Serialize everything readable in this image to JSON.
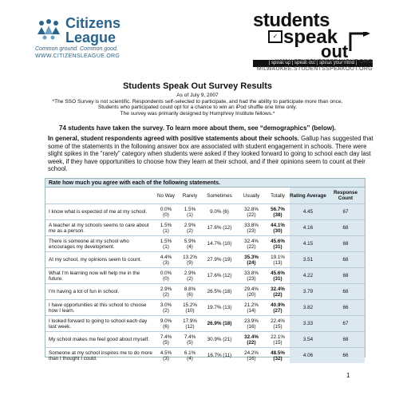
{
  "header": {
    "left_logo": {
      "name_line1": "Citizens",
      "name_line2": "League",
      "slogan": "Common ground. Common good.",
      "url": "WWW.CITIZENSLEAGUE.ORG"
    },
    "right_logo": {
      "word1": "students",
      "word2": "speak",
      "word3": "out",
      "tagline": "| speak up | speak out | speak your mind |",
      "url1": "WWW.STUDENTSSPEAKOUT.ORG",
      "url2": "MILWAUKEE.STUDENTSSPEAKOUT.ORG"
    }
  },
  "title": "Students Speak Out Survey Results",
  "subtitle_lines": [
    "As of July 9, 2007",
    "*The SSO Survey is not scientific. Respondents self-selected to participate, and had the ability to participate more than once.",
    "Students who participated could opt for a chance to win an iPod shuffle one time only.",
    "The survey was primarily designed by Humphrey Institute fellows.*"
  ],
  "demographics_note": "74 students have taken the survey. To learn more about them, see “demographics” (below).",
  "intro": {
    "bold": "In general, student respondents agreed with positive statements about their schools.",
    "text": " Gallup has suggested that some of the statements in the following answer box are associated with student engagement in schools. There were slight spikes in the “rarely” category when students were asked if they looked forward to going to school each day last week, if they have opportunities to choose how they learn at their school, and if their opinions seem to count at their school."
  },
  "table": {
    "heading": "Rate how much you agree with each of the following statements.",
    "columns": [
      "No Way",
      "Rarely",
      "Sometimes",
      "Usually",
      "Totally",
      "Rating Average",
      "Response Count"
    ],
    "rows": [
      {
        "statement": "I know what is expected of me at my school.",
        "noway": [
          "0.0%",
          "(0)"
        ],
        "rarely": [
          "1.5%",
          "(1)"
        ],
        "sometimes": "9.0% (6)",
        "usually": [
          "32.8%",
          "(22)"
        ],
        "totally": [
          "56.7%",
          "(38)"
        ],
        "bold_col": "totally",
        "avg": "4.45",
        "count": "67"
      },
      {
        "statement": "A teacher at my schools seems to care about me as a person.",
        "noway": [
          "1.5%",
          "(1)"
        ],
        "rarely": [
          "2.9%",
          "(2)"
        ],
        "sometimes": "17.6% (12)",
        "usually": [
          "33.8%",
          "(23)"
        ],
        "totally": [
          "44.1%",
          "(30)"
        ],
        "bold_col": "totally",
        "avg": "4.16",
        "count": "68"
      },
      {
        "statement": "There is someone at my school who encourages my development.",
        "noway": [
          "1.5%",
          "(1)"
        ],
        "rarely": [
          "5.9%",
          "(4)"
        ],
        "sometimes": "14.7% (10)",
        "usually": [
          "32.4%",
          "(22)"
        ],
        "totally": [
          "45.6%",
          "(31)"
        ],
        "bold_col": "totally",
        "avg": "4.15",
        "count": "68"
      },
      {
        "statement": "At my school, my opinions seem to count.",
        "noway": [
          "4.4%",
          "(3)"
        ],
        "rarely": [
          "13.2%",
          "(9)"
        ],
        "sometimes": "27.9% (19)",
        "usually": [
          "35.3%",
          "(24)"
        ],
        "totally": [
          "19.1%",
          "(13)"
        ],
        "bold_col": "usually",
        "avg": "3.51",
        "count": "68"
      },
      {
        "statement": "What I’m learning now will help me in the future.",
        "noway": [
          "0.0%",
          "(0)"
        ],
        "rarely": [
          "2.9%",
          "(2)"
        ],
        "sometimes": "17.6% (12)",
        "usually": [
          "33.8%",
          "(23)"
        ],
        "totally": [
          "45.6%",
          "(31)"
        ],
        "bold_col": "totally",
        "avg": "4.22",
        "count": "68"
      },
      {
        "statement": "I’m having a lot of fun in school.",
        "noway": [
          "2.9%",
          "(2)"
        ],
        "rarely": [
          "8.8%",
          "(6)"
        ],
        "sometimes": "26.5% (18)",
        "usually": [
          "29.4%",
          "(20)"
        ],
        "totally": [
          "32.4%",
          "(22)"
        ],
        "bold_col": "totally",
        "avg": "3.79",
        "count": "68"
      },
      {
        "statement": "I have opportunities at this school to choose how I learn.",
        "noway": [
          "3.0%",
          "(2)"
        ],
        "rarely": [
          "15.2%",
          "(10)"
        ],
        "sometimes": "19.7% (13)",
        "usually": [
          "21.2%",
          "(14)"
        ],
        "totally": [
          "40.9%",
          "(27)"
        ],
        "bold_col": "totally",
        "avg": "3.82",
        "count": "66"
      },
      {
        "statement": "I looked forward to going to school each day last week.",
        "noway": [
          "9.0%",
          "(6)"
        ],
        "rarely": [
          "17.9%",
          "(12)"
        ],
        "sometimes": "26.9% (18)",
        "usually": [
          "23.9%",
          "(16)"
        ],
        "totally": [
          "22.4%",
          "(15)"
        ],
        "bold_col": "sometimes",
        "avg": "3.33",
        "count": "67"
      },
      {
        "statement": "My school makes me feel good about myself.",
        "noway": [
          "7.4%",
          "(5)"
        ],
        "rarely": [
          "7.4%",
          "(5)"
        ],
        "sometimes": "30.9% (21)",
        "usually": [
          "32.4%",
          "(22)"
        ],
        "totally": [
          "22.1%",
          "(15)"
        ],
        "bold_col": "usually",
        "avg": "3.54",
        "count": "68"
      },
      {
        "statement": "Someone at my school inspires me to do more than I thought I could.",
        "noway": [
          "4.5%",
          "(3)"
        ],
        "rarely": [
          "6.1%",
          "(4)"
        ],
        "sometimes": "16.7% (11)",
        "usually": [
          "24.2%",
          "(16)"
        ],
        "totally": [
          "48.5%",
          "(32)"
        ],
        "bold_col": "totally",
        "avg": "4.06",
        "count": "66"
      }
    ]
  },
  "page_number": "1",
  "colors": {
    "brand_blue": "#27648f",
    "table_shade": "#dbe8f0"
  }
}
